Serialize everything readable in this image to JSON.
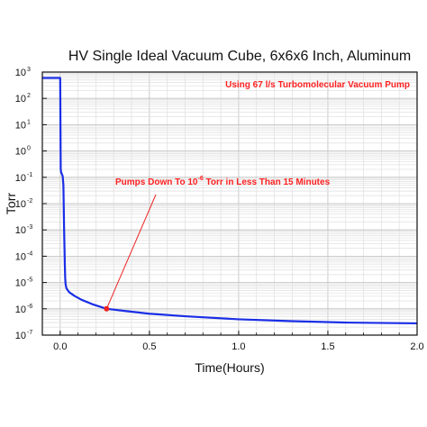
{
  "chart_data": {
    "type": "line",
    "title": "HV Single Ideal Vacuum Cube, 6x6x6 Inch, Aluminum",
    "xlabel": "Time(Hours)",
    "ylabel": "Torr",
    "xlim": [
      -0.1,
      2.0
    ],
    "ylim": [
      1e-07,
      1000
    ],
    "yscale": "log",
    "grid": true,
    "x_ticks": [
      {
        "value": 0.0,
        "label": "0.0"
      },
      {
        "value": 0.5,
        "label": "0.5"
      },
      {
        "value": 1.0,
        "label": "1.0"
      },
      {
        "value": 1.5,
        "label": "1.5"
      },
      {
        "value": 2.0,
        "label": "2.0"
      }
    ],
    "y_ticks": [
      {
        "exp": "3",
        "value": 1000
      },
      {
        "exp": "2",
        "value": 100
      },
      {
        "exp": "1",
        "value": 10
      },
      {
        "exp": "0",
        "value": 1
      },
      {
        "exp": "-1",
        "value": 0.1
      },
      {
        "exp": "-2",
        "value": 0.01
      },
      {
        "exp": "-3",
        "value": 0.001
      },
      {
        "exp": "-4",
        "value": 0.0001
      },
      {
        "exp": "-5",
        "value": 1e-05
      },
      {
        "exp": "-6",
        "value": 1e-06
      },
      {
        "exp": "-7",
        "value": 1e-07
      }
    ],
    "y_tick_base": "10",
    "series": [
      {
        "color": "#1a2ee6",
        "x": [
          -0.1,
          -0.05,
          0.0,
          0.003,
          0.006,
          0.01,
          0.014,
          0.018,
          0.022,
          0.026,
          0.028,
          0.03,
          0.035,
          0.05,
          0.08,
          0.12,
          0.18,
          0.26,
          0.35,
          0.5,
          0.7,
          1.0,
          1.3,
          1.6,
          2.0
        ],
        "y": [
          600,
          600,
          600,
          0.2,
          0.15,
          0.13,
          0.11,
          0.05,
          0.001,
          5e-05,
          1.5e-05,
          9e-06,
          6e-06,
          4.3e-06,
          3.1e-06,
          2.2e-06,
          1.5e-06,
          1e-06,
          8.5e-07,
          6.5e-07,
          5.2e-07,
          4e-07,
          3.4e-07,
          3e-07,
          2.8e-07
        ]
      }
    ],
    "marker": {
      "x": 0.26,
      "y": 1e-06,
      "color": "#ee2222"
    },
    "annotations": {
      "pump": "Using 67 l/s Turbomolecular Vacuum Pump",
      "pumpdown_pre": "Pumps Down To 10",
      "pumpdown_sup": "-6",
      "pumpdown_post": " Torr in Less Than 15 Minutes",
      "color": "#ff2222"
    }
  }
}
